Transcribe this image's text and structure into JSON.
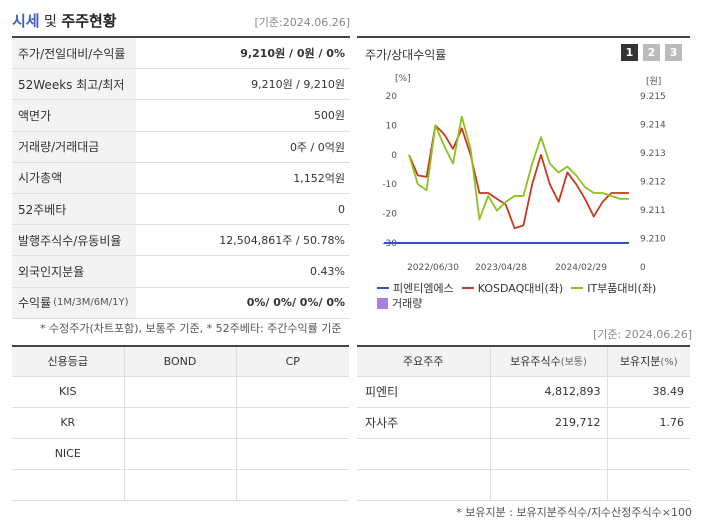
{
  "header": {
    "title_accent": "시세",
    "title_amp": " 및 ",
    "title_rest": "주주현황",
    "basis": "[기준:2024.06.26]"
  },
  "info": [
    {
      "label": "주가/전일대비/수익률",
      "value_bold": "9,210",
      "value_rest": "원 / 0원 / 0%",
      "bold": true
    },
    {
      "label": "52Weeks 최고/최저",
      "value": "9,210원 / 9,210원"
    },
    {
      "label": "액면가",
      "value": "500원"
    },
    {
      "label": "거래량/거래대금",
      "value": "0주 / 0억원"
    },
    {
      "label": "시가총액",
      "value": "1,152억원"
    },
    {
      "label": "52주베타",
      "value": "0"
    },
    {
      "label": "발행주식수/유동비율",
      "value": "12,504,861주 / 50.78%"
    },
    {
      "label": "외국인지분율",
      "value": "0.43%"
    },
    {
      "label": "수익률",
      "label_small": "(1M/3M/6M/1Y)",
      "value": "0%/ 0%/ 0%/ 0%",
      "bold_all": true
    }
  ],
  "note1": "* 수정주가(차트포함), 보통주 기준, * 52주베타: 주간수익률 기준",
  "chart": {
    "title": "주가/상대수익률",
    "pages": [
      "1",
      "2",
      "3"
    ],
    "left_unit": "[%]",
    "right_unit": "[원]",
    "legend": [
      {
        "name": "피엔티엠에스",
        "color": "#2a55c9",
        "kind": "line"
      },
      {
        "name": "KOSDAQ대비(좌)",
        "color": "#c8381c",
        "kind": "line"
      },
      {
        "name": "IT부품대비(좌)",
        "color": "#8cc220",
        "kind": "line"
      },
      {
        "name": "거래량",
        "color": "#a57ee0",
        "kind": "box"
      }
    ]
  },
  "chart_data": {
    "type": "line",
    "x_labels": [
      "2022/06/30",
      "2023/04/28",
      "2024/02/29"
    ],
    "y_left_ticks": [
      20,
      10,
      0,
      -10,
      -20,
      -30
    ],
    "y_right_ticks": [
      "9.215",
      "9.214",
      "9.213",
      "9.212",
      "9.211",
      "9.210",
      "0"
    ],
    "ylim_left": [
      -30,
      20
    ],
    "series": [
      {
        "name": "피엔티엠에스",
        "axis": "right",
        "values": [
          9210,
          9210,
          9210,
          9210,
          9210,
          9210,
          9210,
          9210,
          9210,
          9210,
          9210,
          9210,
          9210,
          9210,
          9210,
          9210,
          9210,
          9210,
          9210,
          9210,
          9210,
          9210,
          9210,
          9210,
          9210,
          9210
        ]
      },
      {
        "name": "KOSDAQ대비(좌)",
        "axis": "left",
        "values": [
          0,
          -7,
          -7.5,
          10,
          7,
          2,
          9,
          0,
          -13,
          -13,
          -15,
          -17,
          -25,
          -24,
          -10,
          0,
          -10,
          -16,
          -6,
          -10,
          -15,
          -21,
          -16,
          -13,
          -13,
          -13
        ]
      },
      {
        "name": "IT부품대비(좌)",
        "axis": "left",
        "values": [
          0,
          -10,
          -12,
          10,
          3,
          -3,
          13,
          2,
          -22,
          -14,
          -19,
          -16,
          -14,
          -14,
          -3,
          6,
          -3,
          -6,
          -4,
          -7,
          -11,
          -13,
          -13,
          -14,
          -15,
          -15
        ]
      }
    ]
  },
  "credit": {
    "headers": [
      "신용등급",
      "BOND",
      "CP"
    ],
    "rows": [
      [
        "KIS",
        "",
        ""
      ],
      [
        "KR",
        "",
        ""
      ],
      [
        "NICE",
        "",
        ""
      ],
      [
        "",
        "",
        ""
      ]
    ]
  },
  "holders": {
    "basis": "[기준: 2024.06.26]",
    "headers": {
      "name": "주요주주",
      "shares": "보유주식수",
      "shares_unit": "(보통)",
      "ratio": "보유지분",
      "ratio_unit": "(%)"
    },
    "rows": [
      {
        "name": "피엔티",
        "shares": "4,812,893",
        "ratio": "38.49"
      },
      {
        "name": "자사주",
        "shares": "219,712",
        "ratio": "1.76"
      },
      {
        "name": "",
        "shares": "",
        "ratio": ""
      },
      {
        "name": "",
        "shares": "",
        "ratio": ""
      }
    ]
  },
  "note2": "* 보유지분 : 보유지분주식수/지수산정주식수×100"
}
